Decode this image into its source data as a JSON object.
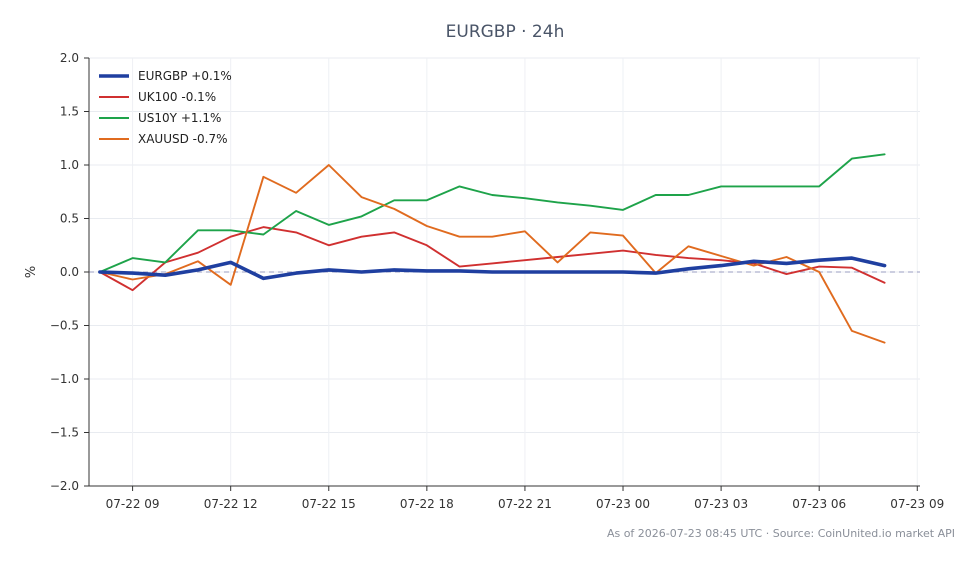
{
  "chart_data": {
    "type": "line",
    "title": "EURGBP · 24h",
    "ylabel": "%",
    "xlabel": "",
    "ylim": [
      -2.0,
      2.0
    ],
    "yticks": [
      2.0,
      1.5,
      1.0,
      0.5,
      0.0,
      -0.5,
      -1.0,
      -1.5,
      -2.0
    ],
    "ytick_labels": [
      "2.0",
      "1.5",
      "1.0",
      "0.5",
      "0.0",
      "−0.5",
      "−1.0",
      "−1.5",
      "−2.0"
    ],
    "xlim": [
      "2026-07-22 07:40",
      "2026-07-23 09:05"
    ],
    "xticks": [
      "2026-07-22 09:00",
      "2026-07-22 12:00",
      "2026-07-22 15:00",
      "2026-07-22 18:00",
      "2026-07-22 21:00",
      "2026-07-23 00:00",
      "2026-07-23 03:00",
      "2026-07-23 06:00",
      "2026-07-23 09:00"
    ],
    "xtick_labels": [
      "07-22 09",
      "07-22 12",
      "07-22 15",
      "07-22 18",
      "07-22 21",
      "07-23 00",
      "07-23 03",
      "07-23 06",
      "07-23 09"
    ],
    "x": [
      "2026-07-22 08:00",
      "2026-07-22 09:00",
      "2026-07-22 10:00",
      "2026-07-22 11:00",
      "2026-07-22 12:00",
      "2026-07-22 13:00",
      "2026-07-22 14:00",
      "2026-07-22 15:00",
      "2026-07-22 16:00",
      "2026-07-22 17:00",
      "2026-07-22 18:00",
      "2026-07-22 19:00",
      "2026-07-22 20:00",
      "2026-07-22 21:00",
      "2026-07-22 22:00",
      "2026-07-22 23:00",
      "2026-07-23 00:00",
      "2026-07-23 01:00",
      "2026-07-23 02:00",
      "2026-07-23 03:00",
      "2026-07-23 04:00",
      "2026-07-23 05:00",
      "2026-07-23 06:00",
      "2026-07-23 07:00",
      "2026-07-23 08:00"
    ],
    "baseline": 0,
    "grid": true,
    "legend_position": "top-left",
    "series": [
      {
        "name": "EURGBP +0.1%",
        "color": "#1f3fa0",
        "values": [
          0.0,
          -0.01,
          -0.03,
          0.02,
          0.09,
          -0.06,
          -0.01,
          0.02,
          0.0,
          0.02,
          0.01,
          0.01,
          0.0,
          0.0,
          0.0,
          0.0,
          0.0,
          -0.01,
          0.03,
          0.06,
          0.1,
          0.08,
          0.11,
          0.13,
          0.06
        ]
      },
      {
        "name": "UK100 -0.1%",
        "color": "#d03030",
        "values": [
          0.0,
          -0.17,
          0.09,
          0.18,
          0.33,
          0.42,
          0.37,
          0.25,
          0.33,
          0.37,
          0.25,
          0.05,
          0.08,
          0.11,
          0.14,
          0.17,
          0.2,
          0.16,
          0.13,
          0.11,
          0.08,
          -0.02,
          0.05,
          0.04,
          -0.1
        ]
      },
      {
        "name": "US10Y +1.1%",
        "color": "#1ea34a",
        "values": [
          0.0,
          0.13,
          0.09,
          0.39,
          0.39,
          0.35,
          0.57,
          0.44,
          0.52,
          0.67,
          0.67,
          0.8,
          0.72,
          0.69,
          0.65,
          0.62,
          0.58,
          0.72,
          0.72,
          0.8,
          0.8,
          0.8,
          0.8,
          1.06,
          1.1
        ]
      },
      {
        "name": "XAUUSD -0.7%",
        "color": "#e06b1f",
        "values": [
          0.0,
          -0.07,
          -0.02,
          0.1,
          -0.12,
          0.89,
          0.74,
          1.0,
          0.7,
          0.59,
          0.43,
          0.33,
          0.33,
          0.38,
          0.09,
          0.37,
          0.34,
          -0.01,
          0.24,
          0.15,
          0.06,
          0.14,
          0.0,
          -0.55,
          -0.66
        ]
      }
    ]
  },
  "footer": {
    "text": "As of 2026-07-23 08:45 UTC · Source: CoinUnited.io market API"
  }
}
